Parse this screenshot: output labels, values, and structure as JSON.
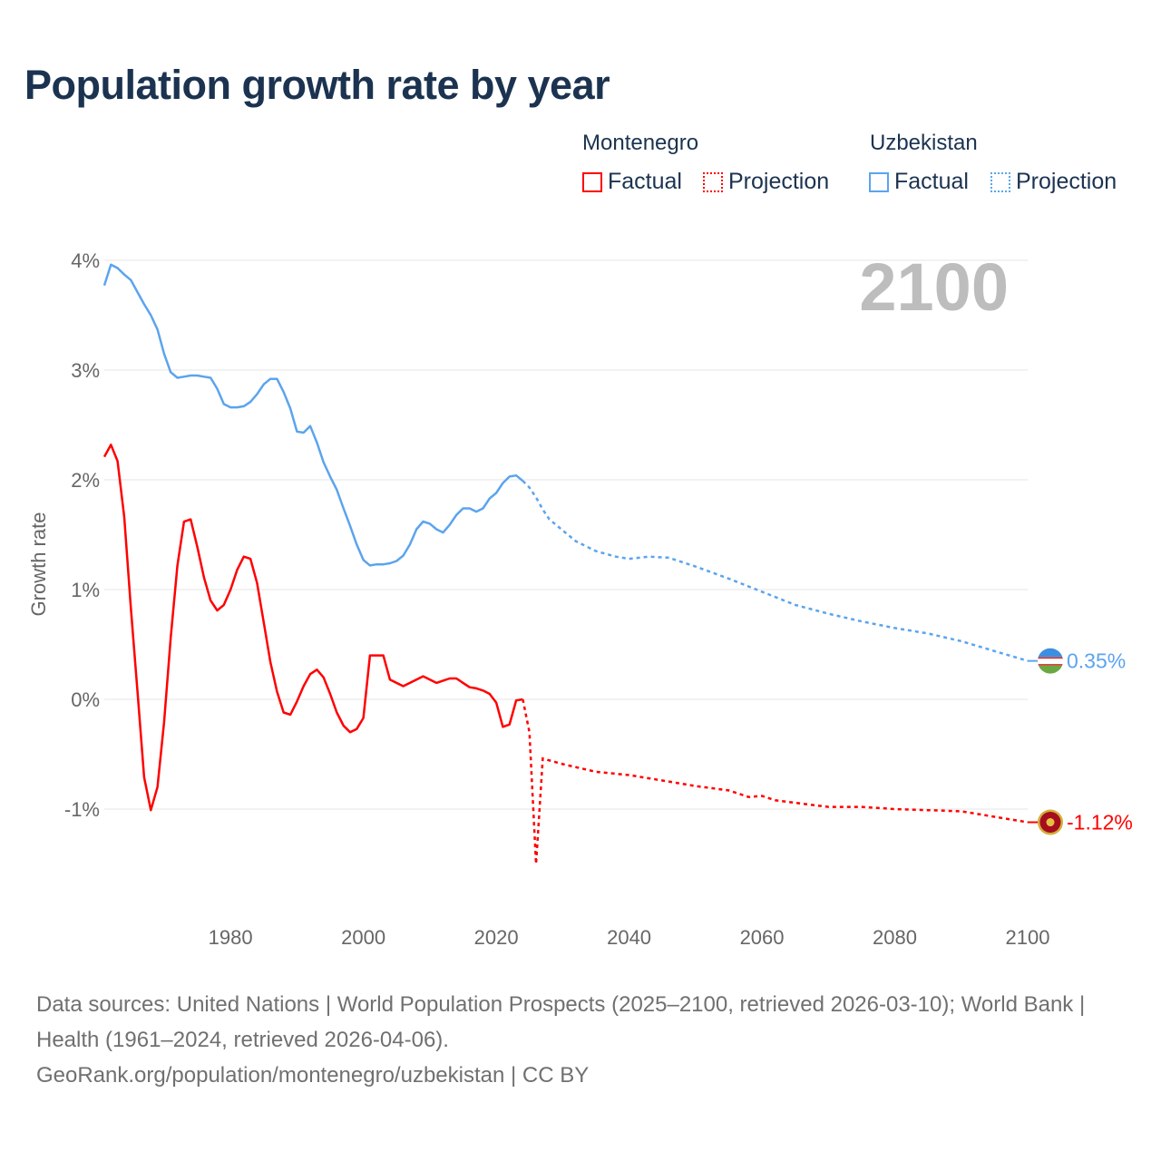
{
  "title": "Population growth rate by year",
  "legend": {
    "groups": [
      {
        "country": "Montenegro",
        "factual": "Factual",
        "projection": "Projection",
        "color": "#ff0000"
      },
      {
        "country": "Uzbekistan",
        "factual": "Factual",
        "projection": "Projection",
        "color": "#5ba4ee"
      }
    ]
  },
  "year_label": "2100",
  "footer": {
    "sources": "Data sources: United Nations | World Population Prospects (2025–2100, retrieved 2026-03-10); World Bank | Health (1961–2024, retrieved 2026-04-06).",
    "link": "GeoRank.org/population/montenegro/uzbekistan | CC BY"
  },
  "chart_data": {
    "type": "line",
    "title": "Population growth rate by year",
    "xlabel": "",
    "ylabel": "Growth rate",
    "xlim": [
      1961,
      2100
    ],
    "ylim": [
      -1.6,
      4.1
    ],
    "x_ticks": [
      1980,
      2000,
      2020,
      2040,
      2060,
      2080,
      2100
    ],
    "y_ticks": [
      {
        "v": 4,
        "label": "4%"
      },
      {
        "v": 3,
        "label": "3%"
      },
      {
        "v": 2,
        "label": "2%"
      },
      {
        "v": 1,
        "label": "1%"
      },
      {
        "v": 0,
        "label": "0%"
      },
      {
        "v": -1,
        "label": "-1%"
      }
    ],
    "grid": true,
    "series": [
      {
        "name": "Uzbekistan",
        "color": "#5ba4ee",
        "end_label": "0.35%",
        "factual_start_year": 1961,
        "factual": [
          3.77,
          3.96,
          3.93,
          3.87,
          3.82,
          3.71,
          3.6,
          3.5,
          3.37,
          3.15,
          2.98,
          2.93,
          2.94,
          2.95,
          2.95,
          2.94,
          2.93,
          2.83,
          2.69,
          2.66,
          2.66,
          2.67,
          2.71,
          2.78,
          2.87,
          2.92,
          2.92,
          2.8,
          2.65,
          2.44,
          2.43,
          2.49,
          2.34,
          2.16,
          2.03,
          1.91,
          1.74,
          1.58,
          1.41,
          1.27,
          1.22,
          1.23,
          1.23,
          1.24,
          1.26,
          1.31,
          1.41,
          1.55,
          1.62,
          1.6,
          1.55,
          1.52,
          1.59,
          1.68,
          1.74,
          1.74,
          1.71,
          1.74,
          1.83,
          1.88,
          1.97,
          2.03,
          2.04,
          1.99
        ],
        "projection": [
          [
            2024,
            1.99
          ],
          [
            2025,
            1.93
          ],
          [
            2026,
            1.84
          ],
          [
            2027,
            1.73
          ],
          [
            2028,
            1.64
          ],
          [
            2030,
            1.54
          ],
          [
            2032,
            1.44
          ],
          [
            2035,
            1.35
          ],
          [
            2038,
            1.3
          ],
          [
            2040,
            1.28
          ],
          [
            2043,
            1.3
          ],
          [
            2046,
            1.29
          ],
          [
            2050,
            1.21
          ],
          [
            2055,
            1.1
          ],
          [
            2060,
            0.98
          ],
          [
            2065,
            0.86
          ],
          [
            2070,
            0.78
          ],
          [
            2075,
            0.71
          ],
          [
            2080,
            0.65
          ],
          [
            2085,
            0.6
          ],
          [
            2090,
            0.53
          ],
          [
            2095,
            0.44
          ],
          [
            2100,
            0.35
          ]
        ]
      },
      {
        "name": "Montenegro",
        "color": "#ff0000",
        "end_label": "-1.12%",
        "factual_start_year": 1961,
        "factual": [
          2.21,
          2.32,
          2.17,
          1.66,
          0.83,
          0.07,
          -0.71,
          -1.01,
          -0.8,
          -0.21,
          0.56,
          1.22,
          1.62,
          1.64,
          1.39,
          1.11,
          0.9,
          0.81,
          0.86,
          1.0,
          1.18,
          1.3,
          1.28,
          1.06,
          0.7,
          0.34,
          0.07,
          -0.12,
          -0.14,
          -0.02,
          0.12,
          0.23,
          0.27,
          0.2,
          0.05,
          -0.12,
          -0.24,
          -0.3,
          -0.27,
          -0.17,
          0.4,
          0.4,
          0.4,
          0.18,
          0.15,
          0.12,
          0.15,
          0.18,
          0.21,
          0.18,
          0.15,
          0.17,
          0.19,
          0.19,
          0.15,
          0.11,
          0.1,
          0.08,
          0.05,
          -0.03,
          -0.25,
          -0.23,
          -0.01,
          0.0
        ],
        "projection": [
          [
            2024,
            0.0
          ],
          [
            2025,
            -0.3
          ],
          [
            2026,
            -1.5
          ],
          [
            2027,
            -0.54
          ],
          [
            2030,
            -0.59
          ],
          [
            2035,
            -0.66
          ],
          [
            2040,
            -0.69
          ],
          [
            2045,
            -0.74
          ],
          [
            2050,
            -0.79
          ],
          [
            2055,
            -0.83
          ],
          [
            2058,
            -0.89
          ],
          [
            2060,
            -0.88
          ],
          [
            2062,
            -0.92
          ],
          [
            2066,
            -0.95
          ],
          [
            2070,
            -0.98
          ],
          [
            2075,
            -0.98
          ],
          [
            2080,
            -1.0
          ],
          [
            2085,
            -1.01
          ],
          [
            2090,
            -1.02
          ],
          [
            2095,
            -1.07
          ],
          [
            2100,
            -1.12
          ]
        ]
      }
    ]
  }
}
